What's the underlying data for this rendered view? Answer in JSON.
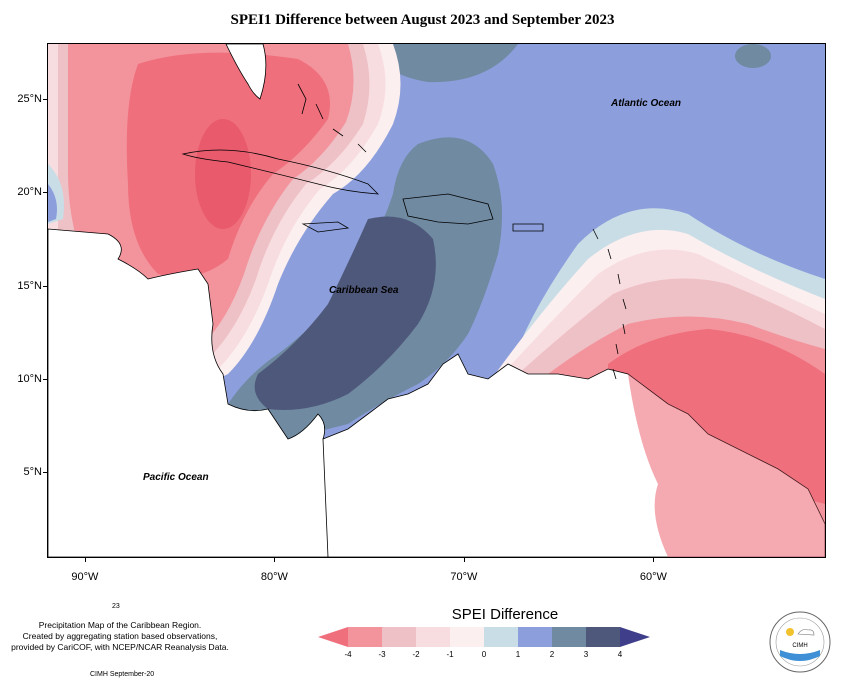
{
  "title": "SPEI1 Difference between August 2023 and September 2023",
  "map": {
    "lon_range": [
      -92,
      -51
    ],
    "lat_range": [
      0.5,
      28
    ],
    "x_ticks": [
      {
        "value": -90,
        "label": "90°W"
      },
      {
        "value": -80,
        "label": "80°W"
      },
      {
        "value": -70,
        "label": "70°W"
      },
      {
        "value": -60,
        "label": "60°W"
      }
    ],
    "y_ticks": [
      {
        "value": 25,
        "label": "25°N"
      },
      {
        "value": 20,
        "label": "20°N"
      },
      {
        "value": 15,
        "label": "15°N"
      },
      {
        "value": 10,
        "label": "10°N"
      },
      {
        "value": 5,
        "label": "5°N"
      }
    ],
    "labels": {
      "atlantic": "Atlantic Ocean",
      "caribbean": "Caribbean Sea",
      "pacific": "Pacific Ocean"
    }
  },
  "legend": {
    "title": "SPEI Difference",
    "labels": [
      "-4",
      "-3",
      "-2",
      "-1",
      "0",
      "1",
      "2",
      "3",
      "4"
    ],
    "colors": [
      "#ef6f7d",
      "#f3949d",
      "#eec1c6",
      "#f8dde0",
      "#fbeff0",
      "#c8dde5",
      "#8c9fdc",
      "#6f8aa1",
      "#4e587a",
      "#3e3e8a"
    ]
  },
  "credit": {
    "line1": "Precipitation Map of the Caribbean Region.",
    "line2": "Created by aggregating station based observations,",
    "line3": "provided by CariCOF, with NCEP/NCAR Reanalysis Data.",
    "number": "23",
    "date": "CIMH September-20"
  },
  "logo": {
    "text": "CIMH",
    "icon": "cimh-logo-icon"
  }
}
